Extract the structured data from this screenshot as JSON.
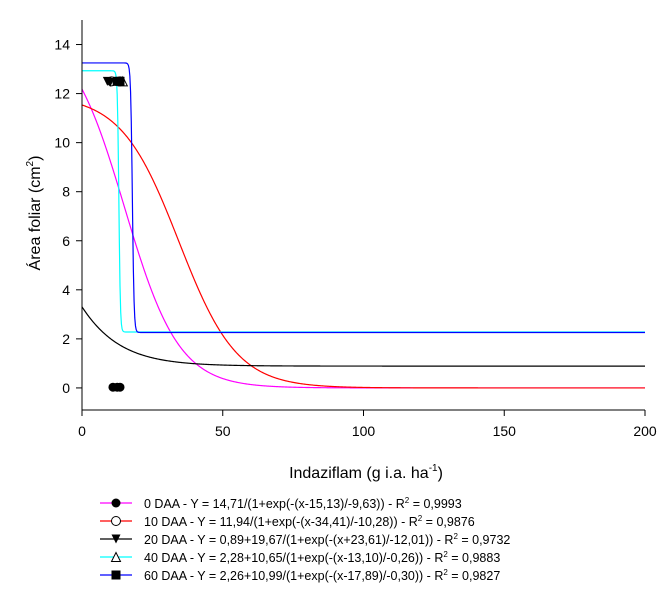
{
  "chart_data": {
    "type": "line",
    "xlabel": "Indaziflam (g i.a. ha",
    "xlabel_sup": "-1",
    "xlabel_end": ")",
    "ylabel": "Área foliar (cm",
    "ylabel_sup": "2",
    "ylabel_end": ")",
    "xlim": [
      0,
      200
    ],
    "ylim": [
      -0.9,
      15
    ],
    "xticks": [
      0,
      50,
      100,
      150,
      200
    ],
    "yticks": [
      0,
      2,
      4,
      6,
      8,
      10,
      12,
      14
    ],
    "grid": false,
    "legend_position": "bottom",
    "series": [
      {
        "color": "#ff00ff",
        "marker": "filled-circle",
        "label_main": "0 DAA - Y = 14,71/(1+exp(-(x-15,13)/-9,63)) - R",
        "label_sup": "2",
        "label_end": " = 0,9993",
        "model": {
          "kind": "logistic",
          "y0": 0,
          "a": 14.71,
          "x0": 15.13,
          "b": -9.63
        },
        "points": [
          {
            "x": 11,
            "y": 0.03
          },
          {
            "x": 12.5,
            "y": 0.03
          },
          {
            "x": 13.5,
            "y": 0.03
          }
        ]
      },
      {
        "color": "#ff0000",
        "marker": "open-circle",
        "label_main": "10 DAA - Y = 11,94/(1+exp(-(x-34,41)/-10,28)) - R",
        "label_sup": "2",
        "label_end": " = 0,9876",
        "model": {
          "kind": "logistic",
          "y0": 0,
          "a": 11.94,
          "x0": 34.41,
          "b": -10.28
        },
        "points": [
          {
            "x": 10.5,
            "y": 12.5
          },
          {
            "x": 13.5,
            "y": 12.5
          }
        ]
      },
      {
        "color": "#000000",
        "marker": "filled-triangle-down",
        "label_main": "20 DAA - Y = 0,89+19,67/(1+exp(-(x+23,61)/-12,01)) - R",
        "label_sup": "2",
        "label_end": " = 0,9732",
        "model": {
          "kind": "logistic",
          "y0": 0.89,
          "a": 19.67,
          "x0": -23.61,
          "b": -12.01
        },
        "points": [
          {
            "x": 9,
            "y": 12.5
          },
          {
            "x": 10,
            "y": 12.45
          }
        ]
      },
      {
        "color": "#00ffff",
        "marker": "open-triangle-up",
        "label_main": "40 DAA - Y = 2,28+10,65/(1+exp(-(x-13,10)/-0,26)) - R",
        "label_sup": "2",
        "label_end": " = 0,9883",
        "model": {
          "kind": "logistic",
          "y0": 2.28,
          "a": 10.65,
          "x0": 13.1,
          "b": -0.26
        },
        "points": [
          {
            "x": 14.5,
            "y": 12.5
          }
        ]
      },
      {
        "color": "#0000ff",
        "marker": "filled-square",
        "label_main": "60 DAA - Y = 2,26+10,99/(1+exp(-(x-17,89)/-0,30)) - R",
        "label_sup": "2",
        "label_end": " = 0,9827",
        "model": {
          "kind": "logistic",
          "y0": 2.26,
          "a": 10.99,
          "x0": 17.89,
          "b": -0.3
        },
        "points": [
          {
            "x": 12.5,
            "y": 12.5
          },
          {
            "x": 13.5,
            "y": 12.5
          }
        ]
      }
    ]
  }
}
